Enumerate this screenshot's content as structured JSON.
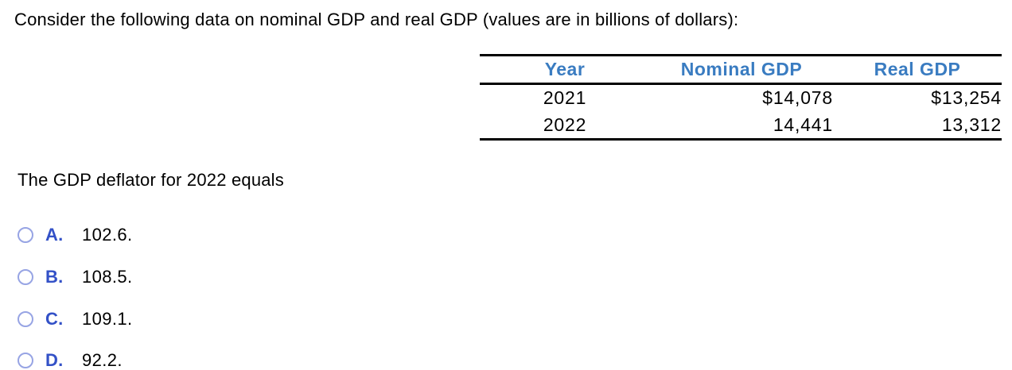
{
  "question": {
    "text": "Consider the following data on nominal GDP and real GDP (values are in billions of dollars):"
  },
  "table": {
    "headers": [
      "Year",
      "Nominal GDP",
      "Real GDP"
    ],
    "rows": [
      [
        "2021",
        "$14,078",
        "$13,254"
      ],
      [
        "2022",
        "14,441",
        "13,312"
      ]
    ]
  },
  "prompt": {
    "text": "The GDP deflator for 2022 equals"
  },
  "options": [
    {
      "letter": "A.",
      "value": "102.6.",
      "selected": false
    },
    {
      "letter": "B.",
      "value": "108.5.",
      "selected": false
    },
    {
      "letter": "C.",
      "value": "109.1.",
      "selected": false
    },
    {
      "letter": "D.",
      "value": "92.2.",
      "selected": false
    }
  ],
  "colors": {
    "header_blue": "#3a7cc1",
    "option_letter_blue": "#3351c7",
    "radio_ring": "#97a4e4",
    "text_black": "#000000",
    "rule_black": "#000000"
  }
}
